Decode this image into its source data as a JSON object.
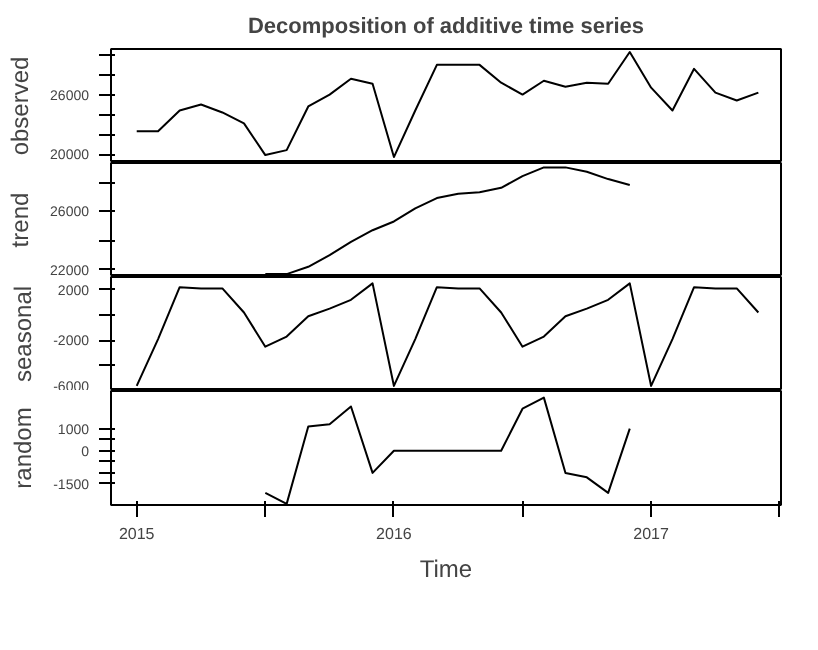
{
  "chart_data": [
    {
      "type": "line",
      "title": "Decomposition of additive time series",
      "ylabel": "observed",
      "tick_labels": "y",
      "color": "#000000",
      "x": [
        2015,
        2015.083,
        2015.167,
        2015.25,
        2015.333,
        2015.417,
        2015.5,
        2015.583,
        2015.667,
        2015.75,
        2015.833,
        2015.917,
        2016,
        2016.083,
        2016.167,
        2016.25,
        2016.333,
        2016.417,
        2016.5,
        2016.583,
        2016.667,
        2016.75,
        2016.833,
        2016.917,
        2017,
        2017.083,
        2017.167,
        2017.25,
        2017.333,
        2017.417
      ],
      "values": [
        22300,
        22300,
        24400,
        25000,
        24200,
        23100,
        19900,
        20400,
        24800,
        26000,
        27600,
        27100,
        19700,
        24400,
        29000,
        29000,
        29000,
        27200,
        26000,
        27400,
        26800,
        27200,
        27100,
        30300,
        26700,
        24400,
        28600,
        26200,
        25400,
        26200
      ],
      "xlim": [
        2014.9,
        2017.505
      ],
      "ylim": [
        19100,
        30600
      ],
      "yticks": [
        20000,
        {
          "value": 22000,
          "label": null
        },
        {
          "value": 24000,
          "label": null
        },
        26000,
        {
          "value": 28000,
          "label": null
        },
        {
          "value": 30000,
          "label": null
        }
      ]
    },
    {
      "type": "line",
      "ylabel": "trend",
      "tick_labels": "y",
      "color": "#000000",
      "x": [
        2015.5,
        2015.583,
        2015.667,
        2015.75,
        2015.833,
        2015.917,
        2016,
        2016.083,
        2016.167,
        2016.25,
        2016.333,
        2016.417,
        2016.5,
        2016.583,
        2016.667,
        2016.75,
        2016.833,
        2016.917
      ],
      "values": [
        21700,
        21700,
        22200,
        23000,
        23900,
        24700,
        25300,
        26200,
        26900,
        27200,
        27300,
        27600,
        28400,
        29000,
        29000,
        28700,
        28200,
        27800
      ],
      "xlim": [
        2014.9,
        2017.505
      ],
      "ylim": [
        21500,
        29300
      ],
      "yticks": [
        22000,
        {
          "value": 24000,
          "label": null
        },
        26000,
        {
          "value": 28000,
          "label": null
        }
      ]
    },
    {
      "type": "line",
      "ylabel": "seasonal",
      "tick_labels": "y",
      "color": "#000000",
      "x": [
        2015,
        2015.083,
        2015.167,
        2015.25,
        2015.333,
        2015.417,
        2015.5,
        2015.583,
        2015.667,
        2015.75,
        2015.833,
        2015.917,
        2016,
        2016.083,
        2016.167,
        2016.25,
        2016.333,
        2016.417,
        2016.5,
        2016.583,
        2016.667,
        2016.75,
        2016.833,
        2016.917,
        2017,
        2017.083,
        2017.167,
        2017.25,
        2017.333,
        2017.417
      ],
      "values": [
        -5600,
        -1900,
        2200,
        2100,
        2100,
        200,
        -2500,
        -1700,
        -100,
        500,
        1200,
        2500,
        -5600,
        -1900,
        2200,
        2100,
        2100,
        200,
        -2500,
        -1700,
        -100,
        500,
        1200,
        2500,
        -5600,
        -1900,
        2200,
        2100,
        2100,
        200
      ],
      "xlim": [
        2014.9,
        2017.505
      ],
      "ylim": [
        -6000,
        3000
      ],
      "yticks": [
        2000,
        {
          "value": 0,
          "label": null
        },
        -2000,
        {
          "value": -4000,
          "label": null
        },
        -6000
      ]
    },
    {
      "type": "line",
      "ylabel": "random",
      "xlabel": "Time",
      "color": "#000000",
      "x": [
        2015.5,
        2015.583,
        2015.667,
        2015.75,
        2015.833,
        2015.917,
        2016,
        2016.083,
        2016.167,
        2016.25,
        2016.333,
        2016.417,
        2016.5,
        2016.583,
        2016.667,
        2016.75,
        2016.833,
        2016.917
      ],
      "values": [
        -1900,
        -2400,
        1100,
        1200,
        2000,
        -1000,
        0,
        0,
        0,
        0,
        0,
        0,
        1900,
        2400,
        -1000,
        -1200,
        -1900,
        1000
      ],
      "xlim": [
        2014.9,
        2017.505
      ],
      "xticks": [
        2015,
        {
          "value": 2015.5,
          "label": null
        },
        2016,
        {
          "value": 2016.5,
          "label": null
        },
        2017,
        {
          "value": 2017.5,
          "label": null
        }
      ],
      "ylim": [
        -2450,
        2700
      ],
      "yticks": [
        -1500,
        {
          "value": -1000,
          "label": null
        },
        {
          "value": -500,
          "label": null
        },
        0,
        {
          "value": 500,
          "label": null
        },
        1000
      ]
    }
  ]
}
